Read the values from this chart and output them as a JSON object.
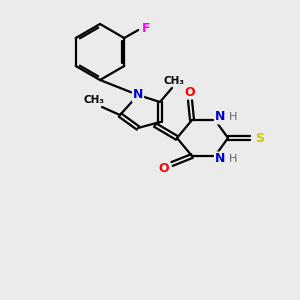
{
  "background_color": "#ebebeb",
  "atom_colors": {
    "N": "#0000cc",
    "O": "#ff0000",
    "S": "#cccc00",
    "F": "#ff00ff",
    "C": "#000000",
    "H": "#666666"
  },
  "bond_color": "#000000",
  "bond_lw": 1.6,
  "figsize": [
    3.0,
    3.0
  ],
  "dpi": 100
}
